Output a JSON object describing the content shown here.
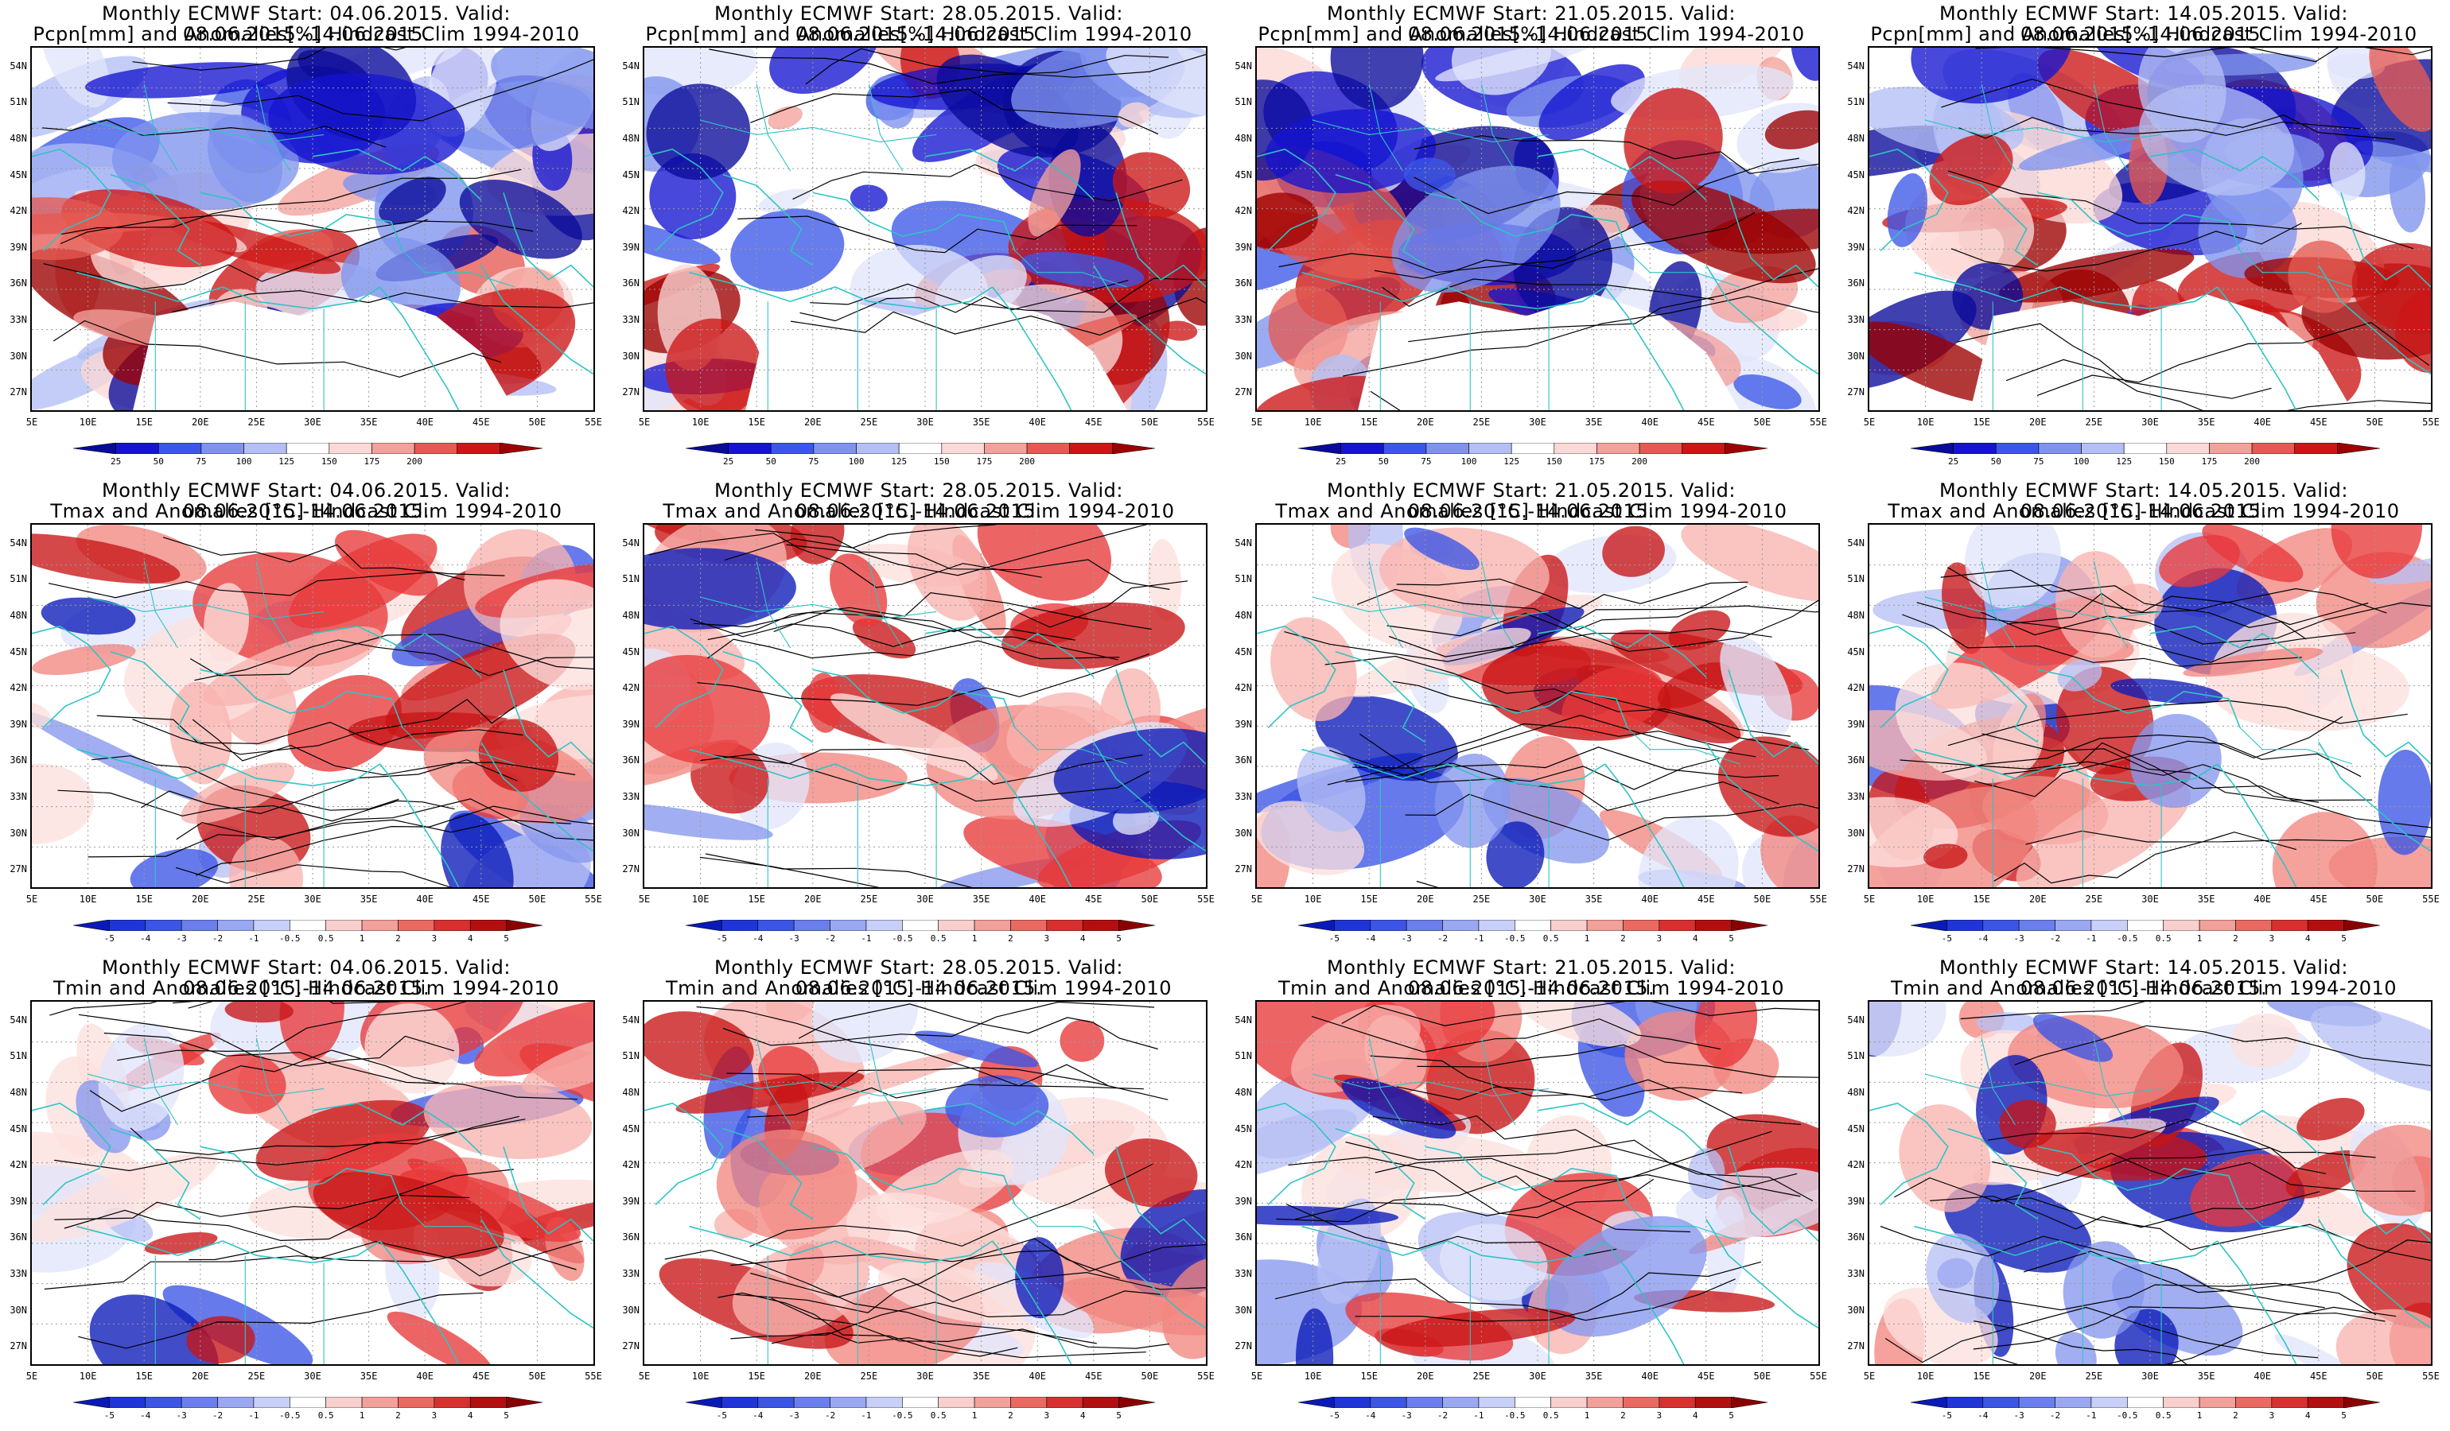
{
  "colors": {
    "coast": "#2ec4c4",
    "contour": "#000000",
    "precip_wet": "#1616d8",
    "precip_dry": "#b80000",
    "temp_warm": "#e8393a",
    "temp_cold": "#3b55e6"
  },
  "lat_ticks": [
    "54N",
    "51N",
    "48N",
    "45N",
    "42N",
    "39N",
    "36N",
    "33N",
    "30N",
    "27N"
  ],
  "lon_ticks": [
    "5E",
    "10E",
    "15E",
    "20E",
    "25E",
    "30E",
    "35E",
    "40E",
    "45E",
    "50E",
    "55E"
  ],
  "colorbars": {
    "precip": [
      "25",
      "50",
      "75",
      "100",
      "125",
      "150",
      "175",
      "200"
    ],
    "temp": [
      "-5",
      "-4",
      "-3",
      "-2",
      "-1",
      "-0.5",
      "0.5",
      "1",
      "2",
      "3",
      "4",
      "5"
    ]
  },
  "rows": [
    {
      "variable": "precip",
      "line2": "Pcpn[mm] and Anomalies[%] Hindcast Clim 1994-2010",
      "panels": [
        {
          "line1": "Monthly ECMWF Start: 04.06.2015. Valid: 08.06.2015.-14.06.2015."
        },
        {
          "line1": "Monthly ECMWF Start: 28.05.2015. Valid: 08.06.2015.-14.06.2015."
        },
        {
          "line1": "Monthly ECMWF Start: 21.05.2015. Valid: 08.06.2015.-14.06.2015."
        },
        {
          "line1": "Monthly ECMWF Start: 14.05.2015. Valid: 08.06.2015.-14.06.2015."
        }
      ]
    },
    {
      "variable": "tmax",
      "line2": "Tmax and Anomalies [°C] Hindcast Clim 1994-2010",
      "panels": [
        {
          "line1": "Monthly ECMWF Start: 04.06.2015. Valid: 08.06.2015.-14.06.2015."
        },
        {
          "line1": "Monthly ECMWF Start: 28.05.2015. Valid: 08.06.2015.-14.06.2015."
        },
        {
          "line1": "Monthly ECMWF Start: 21.05.2015. Valid: 08.06.2015.-14.06.2015."
        },
        {
          "line1": "Monthly ECMWF Start: 14.05.2015. Valid: 08.06.2015.-14.06.2015."
        }
      ]
    },
    {
      "variable": "tmin",
      "line2": "Tmin and Anomalies [°C] Hindcast Clim 1994-2010",
      "panels": [
        {
          "line1": "Monthly ECMWF Start: 04.06.2015. Valid: 08.06.2015.-14.06.2015."
        },
        {
          "line1": "Monthly ECMWF Start: 28.05.2015. Valid: 08.06.2015.-14.06.2015."
        },
        {
          "line1": "Monthly ECMWF Start: 21.05.2015. Valid: 08.06.2015.-14.06.2015."
        },
        {
          "line1": "Monthly ECMWF Start: 14.05.2015. Valid: 08.06.2015.-14.06.2015."
        }
      ]
    }
  ]
}
